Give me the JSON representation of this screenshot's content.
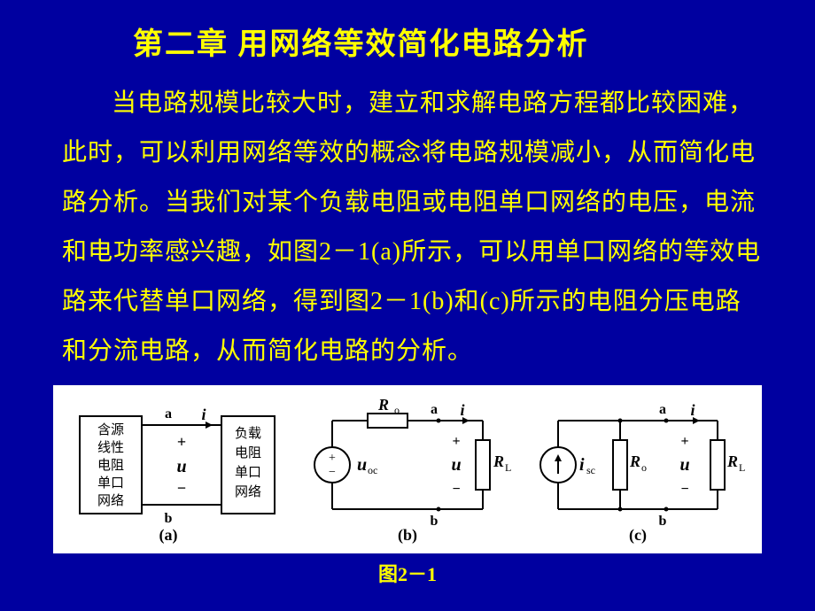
{
  "page": {
    "background_color": "#0000a0",
    "text_color": "#ffff00",
    "title": "第二章  用网络等效简化电路分析",
    "title_fontsize": 34,
    "body_fontsize": 28,
    "line_height": 2.0,
    "paragraph": "当电路规模比较大时，建立和求解电路方程都比较困难，此时，可以利用网络等效的概念将电路规模减小，从而简化电路分析。当我们对某个负载电阻或电阻单口网络的电压，电流和电功率感兴趣，如图2－1(a)所示，可以用单口网络的等效电路来代替单口网络，得到图2－1(b)和(c)所示的电阻分压电路和分流电路，从而简化电路的分析。",
    "caption": "图2－1"
  },
  "figure": {
    "bg": "#ffffff",
    "stroke": "#000000",
    "stroke_width": 2,
    "font_family": "Times New Roman",
    "label_fontsize": 18,
    "small_fontsize": 12,
    "panel_labels": {
      "a": "(a)",
      "b": "(b)",
      "c": "(c)"
    },
    "terminals": {
      "top": "a",
      "bottom": "b"
    },
    "arrow_label": "i",
    "voltage_label": "u",
    "voltage_signs": {
      "pos": "+",
      "neg": "−"
    },
    "panel_a": {
      "left_box_lines": [
        "含源",
        "线性",
        "电阻",
        "单口",
        "网络"
      ],
      "right_box_lines": [
        "负载",
        "电阻",
        "单口",
        "网络"
      ]
    },
    "panel_b": {
      "source_label": "u",
      "source_sub": "oc",
      "series_res_label": "R",
      "series_res_sub": "o",
      "load_label": "R",
      "load_sub": "L"
    },
    "panel_c": {
      "source_label": "i",
      "source_sub": "sc",
      "shunt_res_label": "R",
      "shunt_res_sub": "o",
      "load_label": "R",
      "load_sub": "L"
    }
  }
}
